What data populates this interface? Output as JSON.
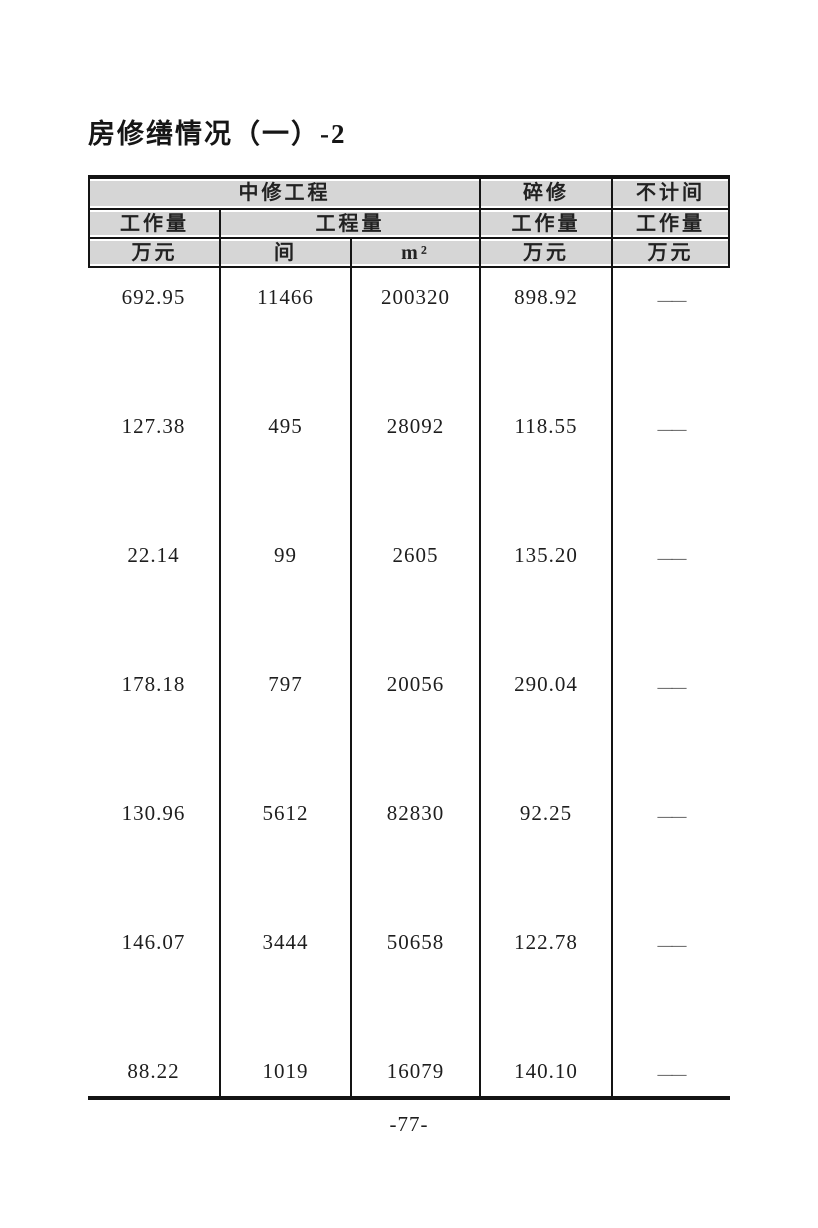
{
  "page": {
    "title": "房修缮情况（一）-2",
    "page_number": "-77-"
  },
  "table": {
    "header": {
      "group_labels": [
        "中修工程",
        "碎修",
        "不计间"
      ],
      "measure_labels": [
        "工作量",
        "工程量",
        "工作量",
        "工作量"
      ],
      "unit_labels": [
        "万元",
        "间",
        "m²",
        "万元",
        "万元"
      ]
    },
    "rows": [
      [
        "692.95",
        "11466",
        "200320",
        "898.92",
        "——"
      ],
      [
        "127.38",
        "495",
        "28092",
        "118.55",
        "——"
      ],
      [
        "22.14",
        "99",
        "2605",
        "135.20",
        "——"
      ],
      [
        "178.18",
        "797",
        "20056",
        "290.04",
        "——"
      ],
      [
        "130.96",
        "5612",
        "82830",
        "92.25",
        "——"
      ],
      [
        "146.07",
        "3444",
        "50658",
        "122.78",
        "——"
      ],
      [
        "88.22",
        "1019",
        "16079",
        "140.10",
        "——"
      ]
    ]
  },
  "colors": {
    "header_bg": "#d6d6d6",
    "border": "#141414",
    "text": "#1c1c1c"
  }
}
